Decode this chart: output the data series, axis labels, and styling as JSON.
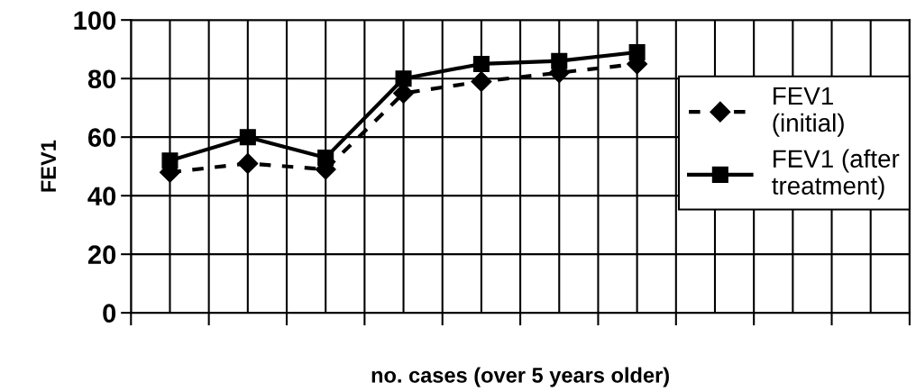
{
  "chart_data": {
    "type": "line",
    "xlabel": "no. cases (over 5 years older)",
    "ylabel": "FEV1",
    "categories": [
      null,
      null,
      null,
      null,
      null,
      null,
      null,
      null,
      null,
      null
    ],
    "series": [
      {
        "name": "FEV1\n(initial)",
        "color": "#000000",
        "marker": "diamond",
        "line_style": "dashed",
        "values": [
          48,
          51,
          49,
          75,
          79,
          82,
          85,
          null,
          null,
          null
        ]
      },
      {
        "name": "FEV1 (after\ntreatment)",
        "color": "#000000",
        "marker": "square",
        "line_style": "solid",
        "values": [
          52,
          60,
          53,
          80,
          85,
          86,
          89,
          null,
          null,
          null
        ]
      }
    ],
    "ylim": [
      0,
      100
    ],
    "yticks": [
      0,
      20,
      40,
      60,
      80,
      100
    ],
    "grid": true,
    "legend": "right"
  }
}
